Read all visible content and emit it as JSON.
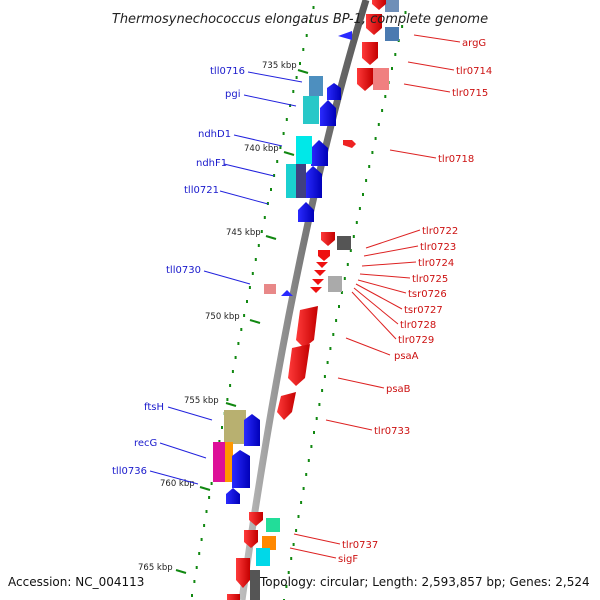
{
  "title": "Thermosynechococcus elongatus BP-1, complete genome",
  "footer": {
    "accession": "Accession: NC_004113",
    "topology": "Topology: circular; Length: 2,593,857 bp; Genes: 2,524"
  },
  "colors": {
    "forward": "#ff0000",
    "reverse": "#0000ee",
    "backbone": "#8c8c8c",
    "tick": "#118811"
  },
  "kbp_marks": [
    "735 kbp",
    "740 kbp",
    "745 kbp",
    "750 kbp",
    "755 kbp",
    "760 kbp",
    "765 kbp"
  ],
  "left_labels": [
    "tll0716",
    "pgi",
    "ndhD1",
    "ndhF1",
    "tll0721",
    "tll0730",
    "ftsH",
    "recG",
    "tll0736"
  ],
  "right_labels": [
    "argG",
    "tlr0714",
    "tlr0715",
    "tlr0718",
    "tlr0722",
    "tlr0723",
    "tlr0724",
    "tlr0725",
    "tsr0726",
    "tsr0727",
    "tlr0728",
    "tlr0729",
    "psaA",
    "psaB",
    "tlr0733",
    "tlr0737",
    "sigF"
  ]
}
